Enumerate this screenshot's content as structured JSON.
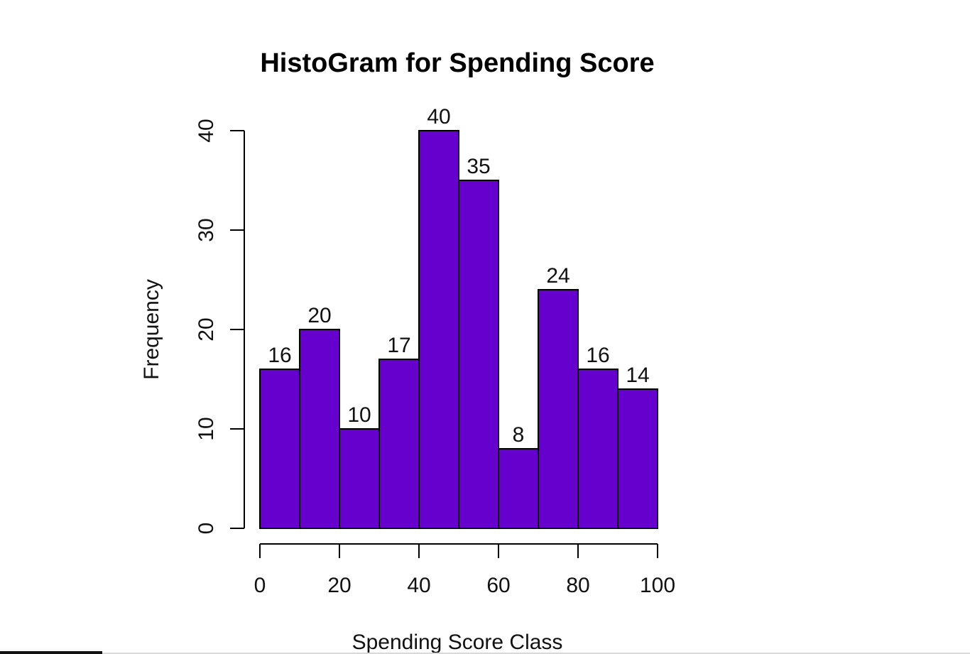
{
  "chart_data": {
    "type": "bar",
    "title": "HistoGram for Spending Score",
    "xlabel": "Spending Score Class",
    "ylabel": "Frequency",
    "bin_edges": [
      0,
      10,
      20,
      30,
      40,
      50,
      60,
      70,
      80,
      90,
      100
    ],
    "values": [
      16,
      20,
      10,
      17,
      40,
      35,
      8,
      24,
      16,
      14
    ],
    "data_labels": [
      "16",
      "20",
      "10",
      "17",
      "40",
      "35",
      "8",
      "24",
      "16",
      "14"
    ],
    "xlim": [
      0,
      100
    ],
    "ylim": [
      0,
      40
    ],
    "x_ticks": [
      0,
      20,
      40,
      60,
      80,
      100
    ],
    "x_tick_labels": [
      "0",
      "20",
      "40",
      "60",
      "80",
      "100"
    ],
    "y_ticks": [
      0,
      10,
      20,
      30,
      40
    ],
    "y_tick_labels": [
      "0",
      "10",
      "20",
      "30",
      "40"
    ],
    "bar_color": "#6600cc",
    "border_color": "#000000",
    "grid": false,
    "legend": "none"
  }
}
